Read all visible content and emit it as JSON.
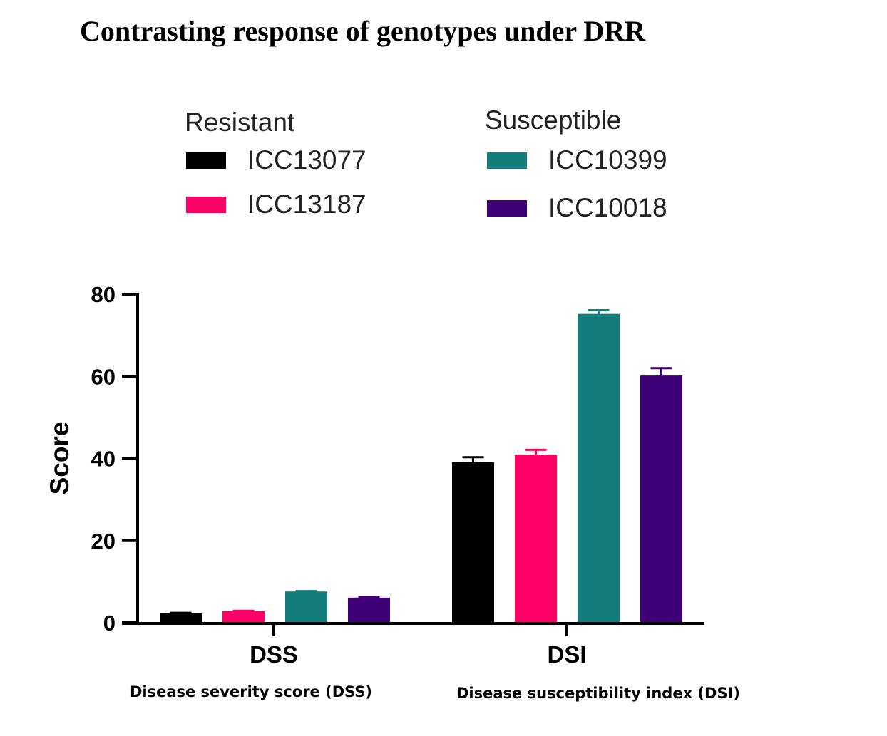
{
  "chart_data": {
    "type": "bar",
    "title": "Contrasting response of genotypes under DRR",
    "ylabel": "Score",
    "xlabel": "",
    "ylim": [
      0,
      80
    ],
    "yticks": [
      0,
      20,
      40,
      60,
      80
    ],
    "categories": [
      "DSS",
      "DSI"
    ],
    "category_descriptions": [
      "Disease severity score (DSS)",
      "Disease susceptibility index (DSI)"
    ],
    "legend_groups": [
      {
        "title": "Resistant",
        "members": [
          "ICC13077",
          "ICC13187"
        ]
      },
      {
        "title": "Susceptible",
        "members": [
          "ICC10399",
          "ICC10018"
        ]
      }
    ],
    "legend_placement": "top",
    "grid": false,
    "series": [
      {
        "name": "ICC13077",
        "color": "#000000",
        "values": [
          2.3,
          39.1
        ],
        "errors": [
          0.1,
          1.2
        ]
      },
      {
        "name": "ICC13187",
        "color": "#ff0066",
        "values": [
          2.8,
          40.9
        ],
        "errors": [
          0.1,
          1.2
        ]
      },
      {
        "name": "ICC10399",
        "color": "#127d7a",
        "values": [
          7.6,
          75.2
        ],
        "errors": [
          0.1,
          0.9
        ]
      },
      {
        "name": "ICC10018",
        "color": "#3f0077",
        "values": [
          6.1,
          60.2
        ],
        "errors": [
          0.2,
          1.8
        ]
      }
    ]
  }
}
